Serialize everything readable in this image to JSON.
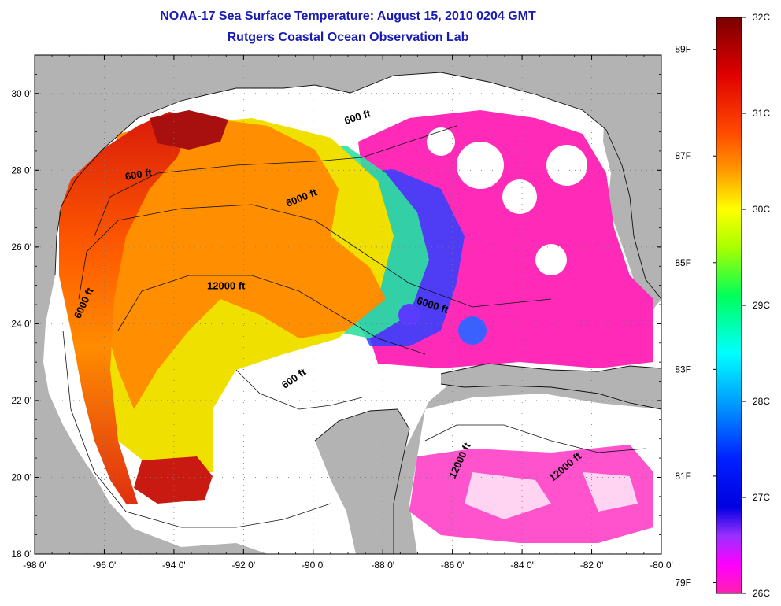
{
  "title": "NOAA-17 Sea Surface Temperature:  August 15, 2010 0204 GMT",
  "subtitle": "Rutgers Coastal Ocean Observation Lab",
  "map": {
    "lon_range": [
      -98,
      -80
    ],
    "lat_range": [
      18,
      31
    ],
    "x_ticks": [
      {
        "value": -98,
        "label": "-98 0'"
      },
      {
        "value": -96,
        "label": "-96 0'"
      },
      {
        "value": -94,
        "label": "-94 0'"
      },
      {
        "value": -92,
        "label": "-92 0'"
      },
      {
        "value": -90,
        "label": "-90 0'"
      },
      {
        "value": -88,
        "label": "-88 0'"
      },
      {
        "value": -86,
        "label": "-86 0'"
      },
      {
        "value": -84,
        "label": "-84 0'"
      },
      {
        "value": -82,
        "label": "-82 0'"
      },
      {
        "value": -80,
        "label": "-80 0'"
      }
    ],
    "y_ticks": [
      {
        "value": 30,
        "label": "30 0'"
      },
      {
        "value": 28,
        "label": "28 0'"
      },
      {
        "value": 26,
        "label": "26 0'"
      },
      {
        "value": 24,
        "label": "24 0'"
      },
      {
        "value": 22,
        "label": "22 0'"
      },
      {
        "value": 20,
        "label": "20 0'"
      },
      {
        "value": 18,
        "label": "18 0'"
      }
    ],
    "contour_labels": [
      {
        "text": "600 ft",
        "lon": -88.7,
        "lat": 29.3,
        "angle": -18
      },
      {
        "text": "600 ft",
        "lon": -95.0,
        "lat": 27.8,
        "angle": -10
      },
      {
        "text": "6000 ft",
        "lon": -90.3,
        "lat": 27.2,
        "angle": -22
      },
      {
        "text": "12000 ft",
        "lon": -92.5,
        "lat": 24.9,
        "angle": 0
      },
      {
        "text": "6000 ft",
        "lon": -96.5,
        "lat": 24.5,
        "angle": -65
      },
      {
        "text": "6000 ft",
        "lon": -86.6,
        "lat": 24.4,
        "angle": 18
      },
      {
        "text": "600 ft",
        "lon": -90.5,
        "lat": 22.5,
        "angle": -35
      },
      {
        "text": "12000 ft",
        "lon": -85.7,
        "lat": 20.4,
        "angle": -65
      },
      {
        "text": "12000 ft",
        "lon": -82.7,
        "lat": 20.2,
        "angle": -40
      }
    ],
    "colors": {
      "land": "#b3b3b3",
      "nodata": "#ffffff",
      "frame": "#000000",
      "grid": "#7a7a7a"
    }
  },
  "colorbar": {
    "range_c": [
      26,
      32
    ],
    "celsius_ticks": [
      {
        "value": 32,
        "label": "32C"
      },
      {
        "value": 31,
        "label": "31C"
      },
      {
        "value": 30,
        "label": "30C"
      },
      {
        "value": 29,
        "label": "29C"
      },
      {
        "value": 28,
        "label": "28C"
      },
      {
        "value": 27,
        "label": "27C"
      },
      {
        "value": 26,
        "label": "26C"
      }
    ],
    "fahrenheit_ticks": [
      {
        "value": 89,
        "label": "89F"
      },
      {
        "value": 87,
        "label": "87F"
      },
      {
        "value": 85,
        "label": "85F"
      },
      {
        "value": 83,
        "label": "83F"
      },
      {
        "value": 81,
        "label": "81F"
      },
      {
        "value": 79,
        "label": "79F"
      }
    ],
    "stops": [
      {
        "c": 32.0,
        "color": "#7a0000"
      },
      {
        "c": 31.4,
        "color": "#e00000"
      },
      {
        "c": 30.8,
        "color": "#ff4a00"
      },
      {
        "c": 30.4,
        "color": "#ff9a00"
      },
      {
        "c": 30.0,
        "color": "#ffff00"
      },
      {
        "c": 29.6,
        "color": "#a8ff00"
      },
      {
        "c": 29.1,
        "color": "#00ff5a"
      },
      {
        "c": 28.5,
        "color": "#00ffff"
      },
      {
        "c": 28.0,
        "color": "#00a0ff"
      },
      {
        "c": 27.4,
        "color": "#0020ff"
      },
      {
        "c": 26.9,
        "color": "#0000e0"
      },
      {
        "c": 26.6,
        "color": "#9a30ff"
      },
      {
        "c": 26.3,
        "color": "#ff00ff"
      },
      {
        "c": 26.0,
        "color": "#ff20b0"
      }
    ]
  }
}
